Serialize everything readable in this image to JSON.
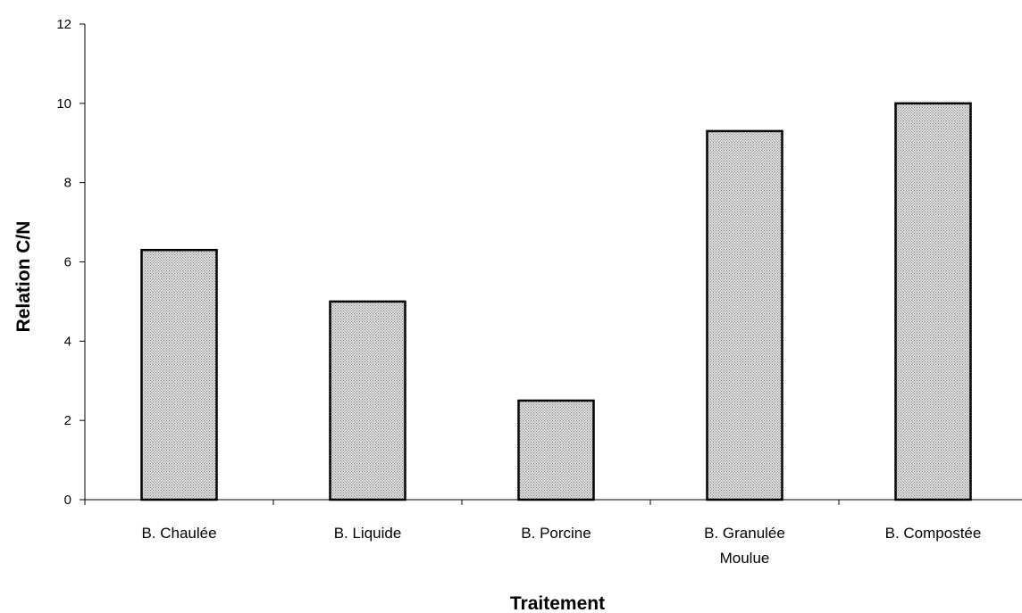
{
  "chart_data": {
    "type": "bar",
    "categories": [
      [
        "B. Chaulée"
      ],
      [
        "B. Liquide"
      ],
      [
        "B. Porcine"
      ],
      [
        "B. Granulée",
        "Moulue"
      ],
      [
        "B. Compostée"
      ]
    ],
    "values": [
      6.3,
      5.0,
      2.5,
      9.3,
      10.0
    ],
    "xlabel": "Traitement",
    "ylabel": "Relation C/N",
    "ylim": [
      0,
      12
    ],
    "yticks": [
      0,
      2,
      4,
      6,
      8,
      10,
      12
    ],
    "grid": false,
    "legend": "none",
    "colors": {
      "bar_fill": "#d9d9d9",
      "bar_pattern_dot": "#8c8c8c",
      "bar_outline": "#000000",
      "axis": "#000000"
    }
  }
}
